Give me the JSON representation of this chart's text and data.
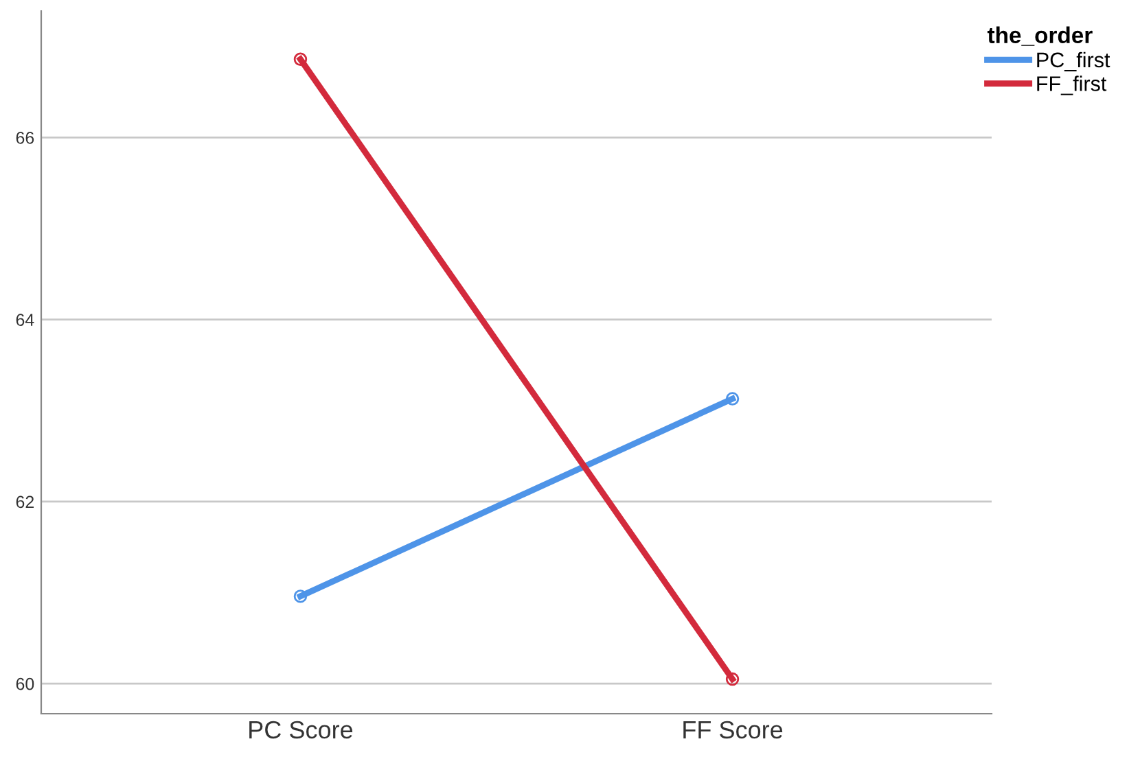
{
  "chart_data": {
    "type": "line",
    "categories": [
      "PC Score",
      "FF Score"
    ],
    "series": [
      {
        "name": "PC_first",
        "color": "#4e94e8",
        "values": [
          60.96,
          63.13
        ]
      },
      {
        "name": "FF_first",
        "color": "#d32a3c",
        "values": [
          66.86,
          60.05
        ]
      }
    ],
    "legend_title": "the_order",
    "legend": "top right",
    "marker": "circle",
    "line_style": "solid",
    "grid": "y",
    "ylim": [
      59.67,
      67.39
    ],
    "yticks": [
      60,
      62,
      64,
      66
    ]
  }
}
